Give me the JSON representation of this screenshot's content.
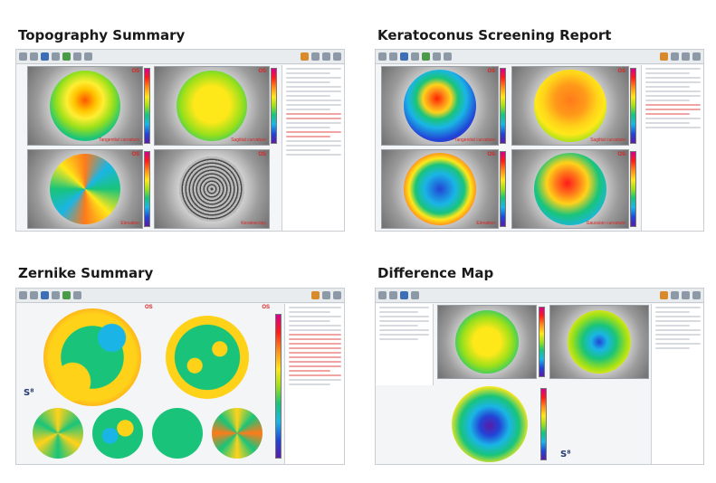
{
  "panels": {
    "topography": {
      "title": "Topography Summary",
      "eye": "OS",
      "maps": [
        "Tangential curvature",
        "Sagittal curvature",
        "Elevation",
        "Keratoscopy"
      ]
    },
    "keratoconus": {
      "title": "Keratoconus Screening Report",
      "eye": "OS",
      "maps": [
        "Tangential curvature",
        "Sagittal curvature",
        "Elevation",
        "Gaussian curvature"
      ]
    },
    "zernike": {
      "title": "Zernike Summary",
      "eye": "OS"
    },
    "difference": {
      "title": "Difference Map"
    }
  },
  "icons": [
    "toolbar-button-icon",
    "logo-icon"
  ],
  "colors": {
    "title": "#1a1a1a",
    "label_red": "#dd2222",
    "window_bg": "#f4f5f7"
  }
}
